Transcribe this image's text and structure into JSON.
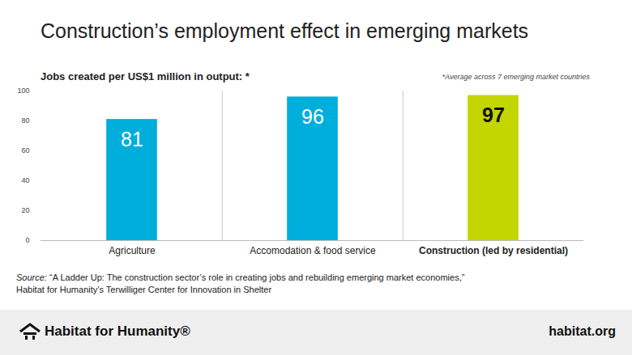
{
  "chart_data": {
    "type": "bar",
    "title": "Construction’s employment effect in emerging markets",
    "subtitle": "Jobs created per US$1 million in output: *",
    "note": "*Average across 7 emerging market countries",
    "source_label": "Source:",
    "source": "“A Ladder Up: The construction sector’s role in creating jobs and rebuilding emerging market economies,” Habitat for Humanity’s Terwilliger Center for Innovation in Shelter",
    "footer": {
      "logo": "Habitat for Humanity®",
      "url": "habitat.org"
    },
    "categories": [
      "Agriculture",
      "Accomodation & food service",
      "Construction (led by residential)"
    ],
    "values": [
      81,
      96,
      97
    ],
    "colors": [
      "#00aedb",
      "#00aedb",
      "#c4d600"
    ],
    "ylim": [
      0,
      100
    ],
    "yticks": [
      0,
      20,
      40,
      60,
      80,
      100
    ],
    "grid": false,
    "data_labels": true
  }
}
